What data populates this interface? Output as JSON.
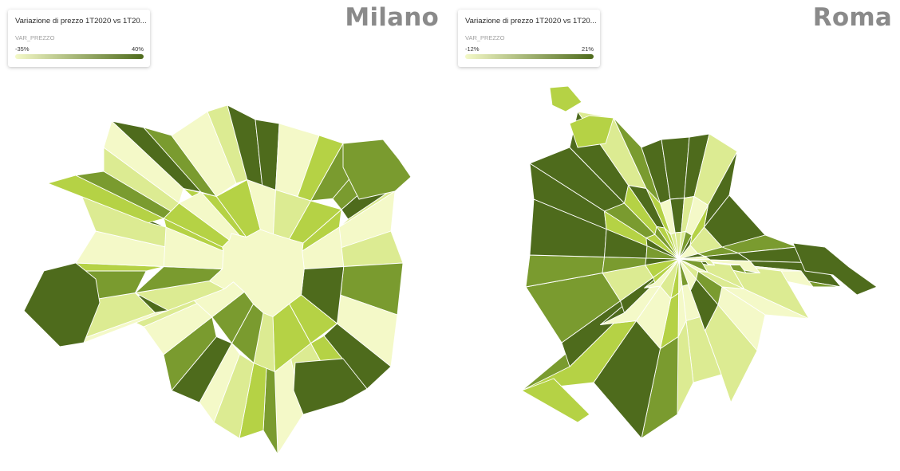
{
  "palette": [
    "#f4f9c8",
    "#dceb92",
    "#b5d245",
    "#7a9b2f",
    "#4e6b1c"
  ],
  "maps": [
    {
      "city": "Milano",
      "legend": {
        "title": "Variazione di prezzo 1T2020 vs 1T20...",
        "variable": "VAR_PREZZO",
        "min_label": "-35%",
        "max_label": "40%",
        "color_low": "#f4f9c8",
        "color_high": "#4e6b1c"
      }
    },
    {
      "city": "Roma",
      "legend": {
        "title": "Variazione di prezzo 1T2020 vs 1T20...",
        "variable": "VAR_PREZZO",
        "min_label": "-12%",
        "max_label": "21%",
        "color_low": "#f4f9c8",
        "color_high": "#4e6b1c"
      }
    }
  ]
}
